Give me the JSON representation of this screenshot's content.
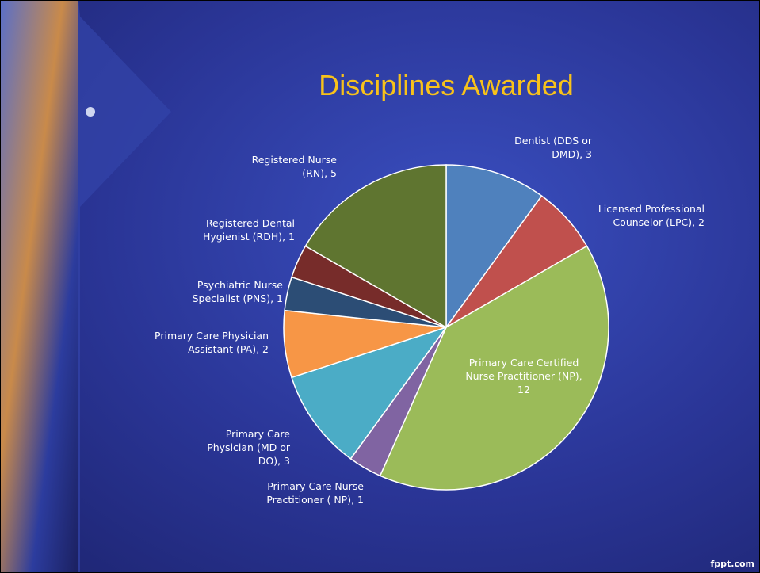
{
  "chart_data": {
    "type": "pie",
    "title": "Disciplines Awarded",
    "values": [
      3,
      2,
      12,
      1,
      3,
      2,
      1,
      1,
      5
    ],
    "value_labels": [
      "Dentist (DDS or DMD), 3",
      "Licensed Professional Counselor (LPC), 2",
      "Primary Care Certified Nurse Practitioner (NP), 12",
      "Primary Care Nurse Practitioner ( NP), 1",
      "Primary Care Physician (MD or DO), 3",
      "Primary Care Physician Assistant (PA), 2",
      "Psychiatric Nurse Specialist (PNS), 1",
      "Registered Dental Hygienist (RDH), 1",
      "Registered Nurse (RN), 5"
    ],
    "colors": [
      "#4f81bd",
      "#c0504d",
      "#9bbb59",
      "#8064a2",
      "#4bacc6",
      "#f79646",
      "#2c4d75",
      "#772c2a",
      "#5f7530"
    ]
  },
  "footer": "fppt.com"
}
